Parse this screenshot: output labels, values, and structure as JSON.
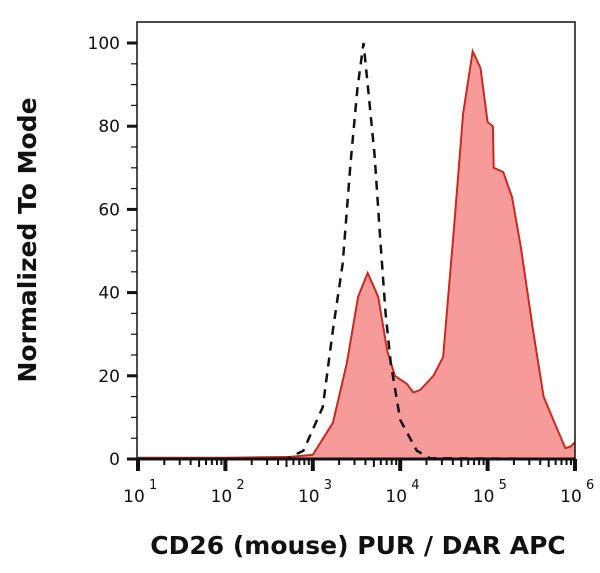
{
  "chart_data": {
    "type": "area",
    "title": "",
    "xlabel": "CD26 (mouse) PUR / DAR APC",
    "ylabel": "Normalized To Mode",
    "x_scale": "log",
    "xlim": [
      10,
      1000000
    ],
    "ylim": [
      0,
      100
    ],
    "grid": false,
    "x_ticks": [
      {
        "base": "10",
        "exp": "1",
        "value": 10
      },
      {
        "base": "10",
        "exp": "2",
        "value": 100
      },
      {
        "base": "10",
        "exp": "3",
        "value": 1000
      },
      {
        "base": "10",
        "exp": "4",
        "value": 10000
      },
      {
        "base": "10",
        "exp": "5",
        "value": 100000
      },
      {
        "base": "10",
        "exp": "6",
        "value": 1000000
      }
    ],
    "y_ticks": [
      "0",
      "20",
      "40",
      "60",
      "80",
      "100"
    ],
    "series": [
      {
        "style": "filled",
        "fill": "#f79a9a",
        "stroke": "#c62a20",
        "x": [
          10,
          100,
          550,
          1000,
          1700,
          2450,
          3300,
          4250,
          5600,
          7100,
          8700,
          12000,
          14100,
          17000,
          24000,
          31000,
          41000,
          52500,
          67600,
          83000,
          100000,
          115000,
          117500,
          151000,
          190000,
          240000,
          331000,
          437000,
          631000,
          776000,
          891000,
          1000000
        ],
        "y": [
          0.3,
          0.3,
          0.5,
          1,
          8.7,
          23,
          39,
          44.7,
          39,
          26,
          20,
          18,
          16,
          16.6,
          20,
          24.5,
          55,
          83,
          98,
          94,
          81,
          80,
          70,
          69,
          63,
          51,
          31,
          15,
          7,
          2.6,
          3,
          4
        ]
      },
      {
        "style": "dashed",
        "stroke": "#111111",
        "x": [
          10,
          500,
          780,
          1300,
          1700,
          2200,
          2700,
          3240,
          3800,
          4250,
          5100,
          5900,
          6800,
          7800,
          10000,
          15500,
          21900,
          1000000
        ],
        "y": [
          0,
          0,
          2,
          12.5,
          31,
          47,
          71,
          89,
          100,
          90,
          73,
          53,
          35,
          23,
          9.4,
          2,
          0.2,
          0
        ]
      }
    ]
  }
}
